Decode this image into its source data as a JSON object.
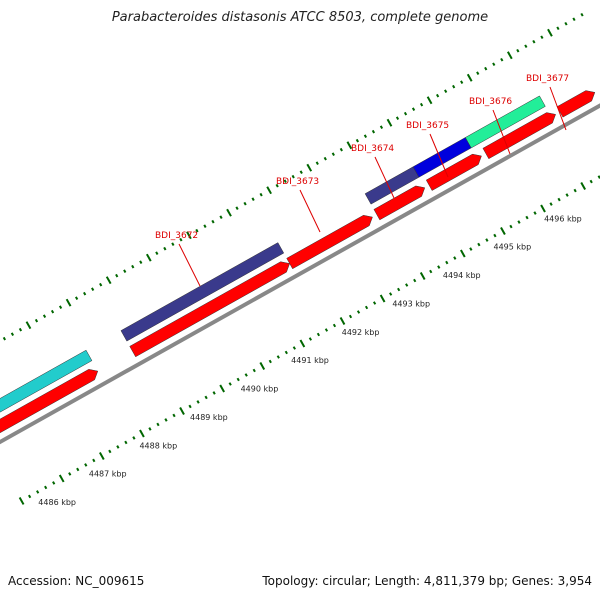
{
  "title": "Parabacteroides distasonis ATCC 8503, complete genome",
  "footer": {
    "accession": "Accession: NC_009615",
    "summary": "Topology: circular; Length: 4,811,379 bp; Genes: 3,954"
  },
  "colors": {
    "backbone": "#888888",
    "tick": "#006600",
    "red": "#ff0000",
    "navy": "#3a3a8c",
    "blue": "#0000dd",
    "cyan": "#22cccc",
    "mint": "#22ee99",
    "label": "#dd0000"
  },
  "scale": {
    "labels": [
      "4486 kbp",
      "4487 kbp",
      "4488 kbp",
      "4489 kbp",
      "4490 kbp",
      "4491 kbp",
      "4492 kbp",
      "4493 kbp",
      "4494 kbp",
      "4495 kbp",
      "4496 kbp"
    ]
  },
  "gene_labels": [
    "BDI_3672",
    "BDI_3673",
    "BDI_3674",
    "BDI_3675",
    "BDI_3676",
    "BDI_3677"
  ]
}
